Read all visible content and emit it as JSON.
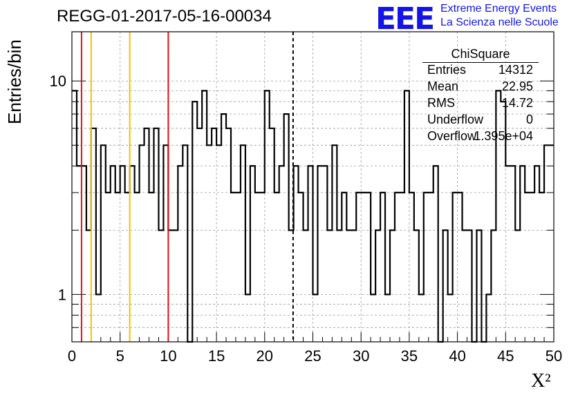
{
  "title": "REGG-01-2017-05-16-00034",
  "logo": {
    "mark": "EEE",
    "line1": "Extreme Energy Events",
    "line2": "La Scienza nelle Scuole"
  },
  "colors": {
    "red": "#e01010",
    "yellow": "#f2c200",
    "logo": "#1414e6"
  },
  "stats": {
    "title": "ChiSquare",
    "rows": [
      {
        "label": "Entries",
        "value": "14312"
      },
      {
        "label": "Mean",
        "value": "22.95"
      },
      {
        "label": "RMS",
        "value": "14.72"
      },
      {
        "label": "Underflow",
        "value": "0"
      },
      {
        "label": "Overflow",
        "value": "1.395e+04"
      }
    ]
  },
  "chart_data": {
    "type": "bar",
    "histogram": true,
    "title": "REGG-01-2017-05-16-00034",
    "xlabel": "X²",
    "ylabel": "Entries/bin",
    "xlim": [
      0,
      50
    ],
    "ylim": [
      0.6,
      17
    ],
    "yscale": "log",
    "grid": true,
    "bin_width": 0.5,
    "x_ticks": [
      "0",
      "5",
      "10",
      "15",
      "20",
      "25",
      "30",
      "35",
      "40",
      "45",
      "50"
    ],
    "y_tick_labels": [
      {
        "value": 1,
        "label": "1"
      },
      {
        "value": 10,
        "label": "10"
      }
    ],
    "values": [
      9,
      4,
      4,
      2,
      6,
      1,
      5,
      3,
      4,
      3,
      4,
      3,
      4,
      3,
      5,
      6,
      3,
      6,
      2,
      5,
      2,
      2,
      4,
      5,
      0,
      8,
      6,
      9,
      5,
      6,
      5,
      7,
      6,
      3,
      3,
      5,
      1,
      4,
      3,
      3,
      9,
      6,
      3,
      4,
      7,
      2,
      4,
      3,
      2,
      4,
      1,
      4,
      4,
      2,
      5,
      2,
      3,
      2,
      2,
      3,
      3,
      3,
      1,
      2,
      3,
      1,
      2,
      3,
      3,
      9,
      3,
      2,
      1,
      3,
      3,
      4,
      0,
      2,
      1,
      3,
      3,
      2,
      2,
      0,
      2,
      0,
      1,
      2,
      9,
      8,
      4,
      4,
      2,
      4,
      3,
      3,
      4,
      3,
      5,
      5
    ],
    "vertical_lines": [
      {
        "x": 1,
        "color": "red",
        "style": "solid"
      },
      {
        "x": 2,
        "color": "yellow",
        "style": "solid"
      },
      {
        "x": 6,
        "color": "yellow",
        "style": "solid"
      },
      {
        "x": 10,
        "color": "red",
        "style": "solid"
      },
      {
        "x": 22.95,
        "color": "black",
        "style": "dashed"
      }
    ],
    "legend": "top-right"
  }
}
